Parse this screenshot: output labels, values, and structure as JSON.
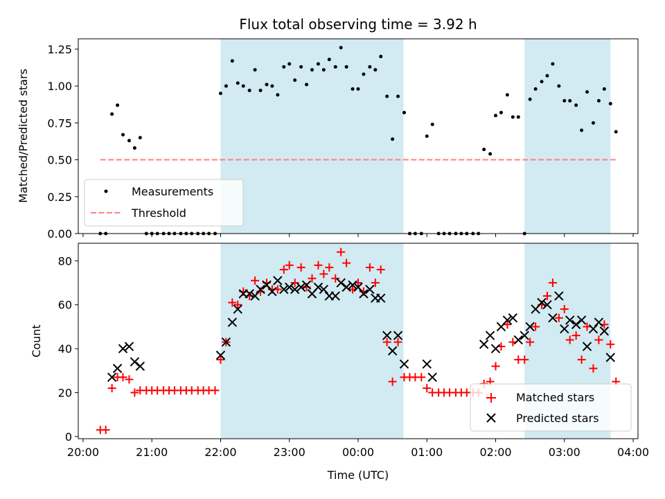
{
  "chart_data": [
    {
      "type": "scatter",
      "title": "Flux total observing time = 3.92 h",
      "xlabel": "",
      "ylabel": "Matched/Predicted stars",
      "ylim": [
        0,
        1.32
      ],
      "yticks": [
        "0.00",
        "0.25",
        "0.50",
        "0.75",
        "1.00",
        "1.25"
      ],
      "ytick_values": [
        0,
        0.25,
        0.5,
        0.75,
        1.0,
        1.25
      ],
      "x_axis": "time (hours since 20:00 UTC)",
      "xlim": [
        -0.07,
        8.07
      ],
      "xtick_values": [
        0,
        1,
        2,
        3,
        4,
        5,
        6,
        7,
        8
      ],
      "show_xtick_labels": false,
      "legend_placement": "lower-left",
      "shaded_intervals": [
        [
          2.0,
          4.66
        ],
        [
          6.42,
          7.67
        ]
      ],
      "shade_color": "#add8e6",
      "series": [
        {
          "name": "Measurements",
          "kind": "dot",
          "color": "#000000",
          "x": [
            0.25,
            0.33,
            0.42,
            0.5,
            0.58,
            0.67,
            0.75,
            0.83,
            0.92,
            1.0,
            1.08,
            1.17,
            1.25,
            1.33,
            1.42,
            1.5,
            1.58,
            1.67,
            1.75,
            1.83,
            1.92,
            2.0,
            2.08,
            2.17,
            2.25,
            2.33,
            2.42,
            2.5,
            2.58,
            2.67,
            2.75,
            2.83,
            2.92,
            3.0,
            3.08,
            3.17,
            3.25,
            3.33,
            3.42,
            3.5,
            3.58,
            3.67,
            3.75,
            3.83,
            3.92,
            4.0,
            4.08,
            4.17,
            4.25,
            4.33,
            4.42,
            4.5,
            4.58,
            4.67,
            4.75,
            4.83,
            4.92,
            5.0,
            5.08,
            5.17,
            5.25,
            5.33,
            5.42,
            5.5,
            5.58,
            5.67,
            5.75,
            5.83,
            5.92,
            6.0,
            6.08,
            6.17,
            6.25,
            6.33,
            6.42,
            6.5,
            6.58,
            6.67,
            6.75,
            6.83,
            6.92,
            7.0,
            7.08,
            7.17,
            7.25,
            7.33,
            7.42,
            7.5,
            7.58,
            7.67,
            7.75
          ],
          "values": [
            0.0,
            0.0,
            0.81,
            0.87,
            0.67,
            0.63,
            0.58,
            0.65,
            0.0,
            0.0,
            0.0,
            0.0,
            0.0,
            0.0,
            0.0,
            0.0,
            0.0,
            0.0,
            0.0,
            0.0,
            0.0,
            0.95,
            1.0,
            1.17,
            1.02,
            1.0,
            0.97,
            1.11,
            0.97,
            1.01,
            1.0,
            0.94,
            1.13,
            1.15,
            1.04,
            1.13,
            1.01,
            1.11,
            1.15,
            1.11,
            1.18,
            1.13,
            1.26,
            1.13,
            0.98,
            0.98,
            1.08,
            1.13,
            1.11,
            1.2,
            0.93,
            0.64,
            0.93,
            0.82,
            0.0,
            0.0,
            0.0,
            0.66,
            0.74,
            0.0,
            0.0,
            0.0,
            0.0,
            0.0,
            0.0,
            0.0,
            0.0,
            0.57,
            0.54,
            0.8,
            0.82,
            0.94,
            0.79,
            0.79,
            0.0,
            0.91,
            0.98,
            1.03,
            1.07,
            1.15,
            1.0,
            0.9,
            0.9,
            0.87,
            0.7,
            0.96,
            0.75,
            0.9,
            0.98,
            0.88,
            0.69
          ]
        },
        {
          "name": "Threshold",
          "kind": "dashed-line",
          "color": "#ff7f7f",
          "x": [
            0.25,
            7.75
          ],
          "values": [
            0.5,
            0.5
          ]
        }
      ]
    },
    {
      "type": "scatter",
      "title": "",
      "xlabel": "Time (UTC)",
      "ylabel": "Count",
      "ylim": [
        -1,
        88
      ],
      "yticks": [
        "0",
        "20",
        "40",
        "60",
        "80"
      ],
      "ytick_values": [
        0,
        20,
        40,
        60,
        80
      ],
      "x_axis": "time (hours since 20:00 UTC)",
      "xlim": [
        -0.07,
        8.07
      ],
      "xtick_values": [
        0,
        1,
        2,
        3,
        4,
        5,
        6,
        7,
        8
      ],
      "xticks": [
        "20:00",
        "21:00",
        "22:00",
        "23:00",
        "00:00",
        "01:00",
        "02:00",
        "03:00",
        "04:00"
      ],
      "legend_placement": "lower-right",
      "shaded_intervals": [
        [
          2.0,
          4.66
        ],
        [
          6.42,
          7.67
        ]
      ],
      "shade_color": "#add8e6",
      "series": [
        {
          "name": "Matched stars",
          "kind": "plus",
          "color": "#ff0000",
          "x": [
            0.25,
            0.33,
            0.42,
            0.5,
            0.58,
            0.67,
            0.75,
            0.83,
            0.92,
            1.0,
            1.08,
            1.17,
            1.25,
            1.33,
            1.42,
            1.5,
            1.58,
            1.67,
            1.75,
            1.83,
            1.92,
            2.0,
            2.08,
            2.17,
            2.25,
            2.33,
            2.42,
            2.5,
            2.58,
            2.67,
            2.75,
            2.83,
            2.92,
            3.0,
            3.08,
            3.17,
            3.25,
            3.33,
            3.42,
            3.5,
            3.58,
            3.67,
            3.75,
            3.83,
            3.92,
            4.0,
            4.08,
            4.17,
            4.25,
            4.33,
            4.42,
            4.5,
            4.58,
            4.67,
            4.75,
            4.83,
            4.92,
            5.0,
            5.08,
            5.17,
            5.25,
            5.33,
            5.42,
            5.5,
            5.58,
            5.67,
            5.75,
            5.83,
            5.92,
            6.0,
            6.08,
            6.17,
            6.25,
            6.33,
            6.42,
            6.5,
            6.58,
            6.67,
            6.75,
            6.83,
            6.92,
            7.0,
            7.08,
            7.17,
            7.25,
            7.33,
            7.42,
            7.5,
            7.58,
            7.67,
            7.75
          ],
          "values": [
            3,
            3,
            22,
            27,
            27,
            26,
            20,
            21,
            21,
            21,
            21,
            21,
            21,
            21,
            21,
            21,
            21,
            21,
            21,
            21,
            21,
            35,
            43,
            61,
            60,
            66,
            64,
            71,
            66,
            70,
            67,
            67,
            76,
            78,
            70,
            77,
            68,
            72,
            78,
            74,
            77,
            72,
            84,
            79,
            67,
            70,
            66,
            77,
            70,
            76,
            43,
            25,
            43,
            27,
            27,
            27,
            27,
            22,
            20,
            20,
            20,
            20,
            20,
            20,
            20,
            20,
            20,
            24,
            25,
            32,
            41,
            51,
            43,
            35,
            35,
            43,
            50,
            60,
            64,
            70,
            54,
            58,
            44,
            46,
            35,
            50,
            31,
            44,
            51,
            42,
            25
          ]
        },
        {
          "name": "Predicted stars",
          "kind": "x",
          "color": "#000000",
          "x": [
            0.42,
            0.5,
            0.58,
            0.67,
            0.75,
            0.83,
            2.0,
            2.08,
            2.17,
            2.25,
            2.33,
            2.42,
            2.5,
            2.58,
            2.67,
            2.75,
            2.83,
            2.92,
            3.0,
            3.08,
            3.17,
            3.25,
            3.33,
            3.42,
            3.5,
            3.58,
            3.67,
            3.75,
            3.83,
            3.92,
            4.0,
            4.08,
            4.17,
            4.25,
            4.33,
            4.42,
            4.5,
            4.58,
            4.67,
            5.0,
            5.08,
            5.83,
            5.92,
            6.0,
            6.08,
            6.17,
            6.25,
            6.33,
            6.42,
            6.5,
            6.58,
            6.67,
            6.75,
            6.83,
            6.92,
            7.0,
            7.08,
            7.17,
            7.25,
            7.33,
            7.42,
            7.5,
            7.58,
            7.67
          ],
          "values": [
            27,
            31,
            40,
            41,
            34,
            32,
            37,
            43,
            52,
            58,
            65,
            65,
            64,
            67,
            69,
            66,
            71,
            67,
            68,
            67,
            68,
            69,
            65,
            68,
            67,
            64,
            64,
            70,
            68,
            69,
            68,
            65,
            67,
            63,
            63,
            46,
            39,
            46,
            33,
            33,
            27,
            42,
            46,
            40,
            50,
            53,
            54,
            44,
            46,
            50,
            58,
            61,
            60,
            54,
            64,
            49,
            53,
            51,
            53,
            41,
            49,
            52,
            48,
            36
          ]
        }
      ]
    }
  ]
}
